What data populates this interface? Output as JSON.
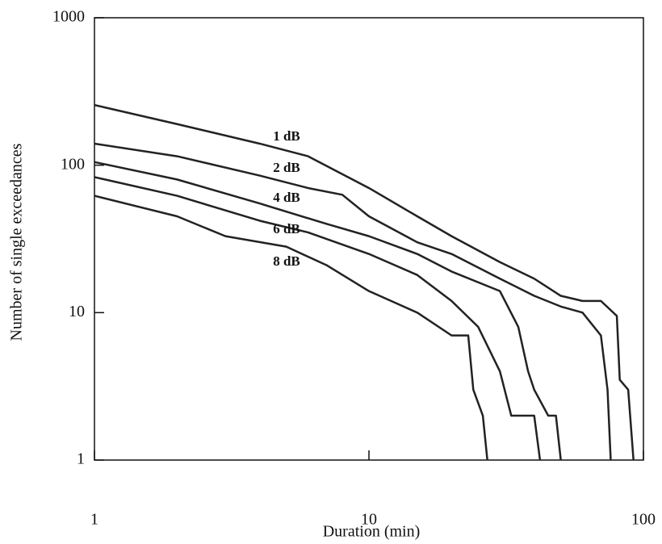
{
  "chart_data": {
    "type": "line",
    "log_x": true,
    "log_y": true,
    "x_label": "Duration (min)",
    "y_label": "Number of single exceedances",
    "xlim": [
      1,
      100
    ],
    "xticks": [
      1,
      10,
      100
    ],
    "ylim": [
      1,
      1000
    ],
    "yticks": [
      1,
      10,
      100,
      1000
    ],
    "series": [
      {
        "name": "1 dB",
        "color": "#222222",
        "x": [
          1,
          2,
          4,
          6,
          10,
          15,
          20,
          30,
          40,
          50,
          60,
          70,
          80,
          82,
          88,
          92
        ],
        "values": [
          256,
          190,
          140,
          115,
          70,
          45,
          33,
          22,
          17,
          13,
          12,
          12,
          9.5,
          3.5,
          3,
          1
        ]
      },
      {
        "name": "2 dB",
        "color": "#222222",
        "x": [
          1,
          2,
          4,
          6,
          8,
          10,
          15,
          20,
          30,
          40,
          50,
          60,
          70,
          74,
          76
        ],
        "values": [
          140,
          115,
          85,
          70,
          63,
          45,
          30,
          25,
          17,
          13,
          11,
          10,
          7,
          3,
          1
        ]
      },
      {
        "name": "4 dB",
        "color": "#222222",
        "x": [
          1,
          2,
          4,
          7,
          10,
          15,
          20,
          30,
          35,
          38,
          40,
          45,
          48,
          50
        ],
        "values": [
          105,
          80,
          55,
          40,
          33,
          25,
          19,
          14,
          8,
          4,
          3,
          2,
          2,
          1
        ]
      },
      {
        "name": "6 dB",
        "color": "#222222",
        "x": [
          1,
          2,
          4,
          6,
          10,
          15,
          20,
          25,
          30,
          33,
          40,
          42
        ],
        "values": [
          83,
          62,
          42,
          35,
          25,
          18,
          12,
          8,
          4,
          2,
          2,
          1
        ]
      },
      {
        "name": "8 dB",
        "color": "#222222",
        "x": [
          1,
          2,
          3,
          5,
          7,
          10,
          15,
          20,
          23,
          24,
          26,
          27
        ],
        "values": [
          62,
          45,
          33,
          28,
          21,
          14,
          10,
          7,
          7,
          3,
          2,
          1
        ]
      }
    ]
  }
}
